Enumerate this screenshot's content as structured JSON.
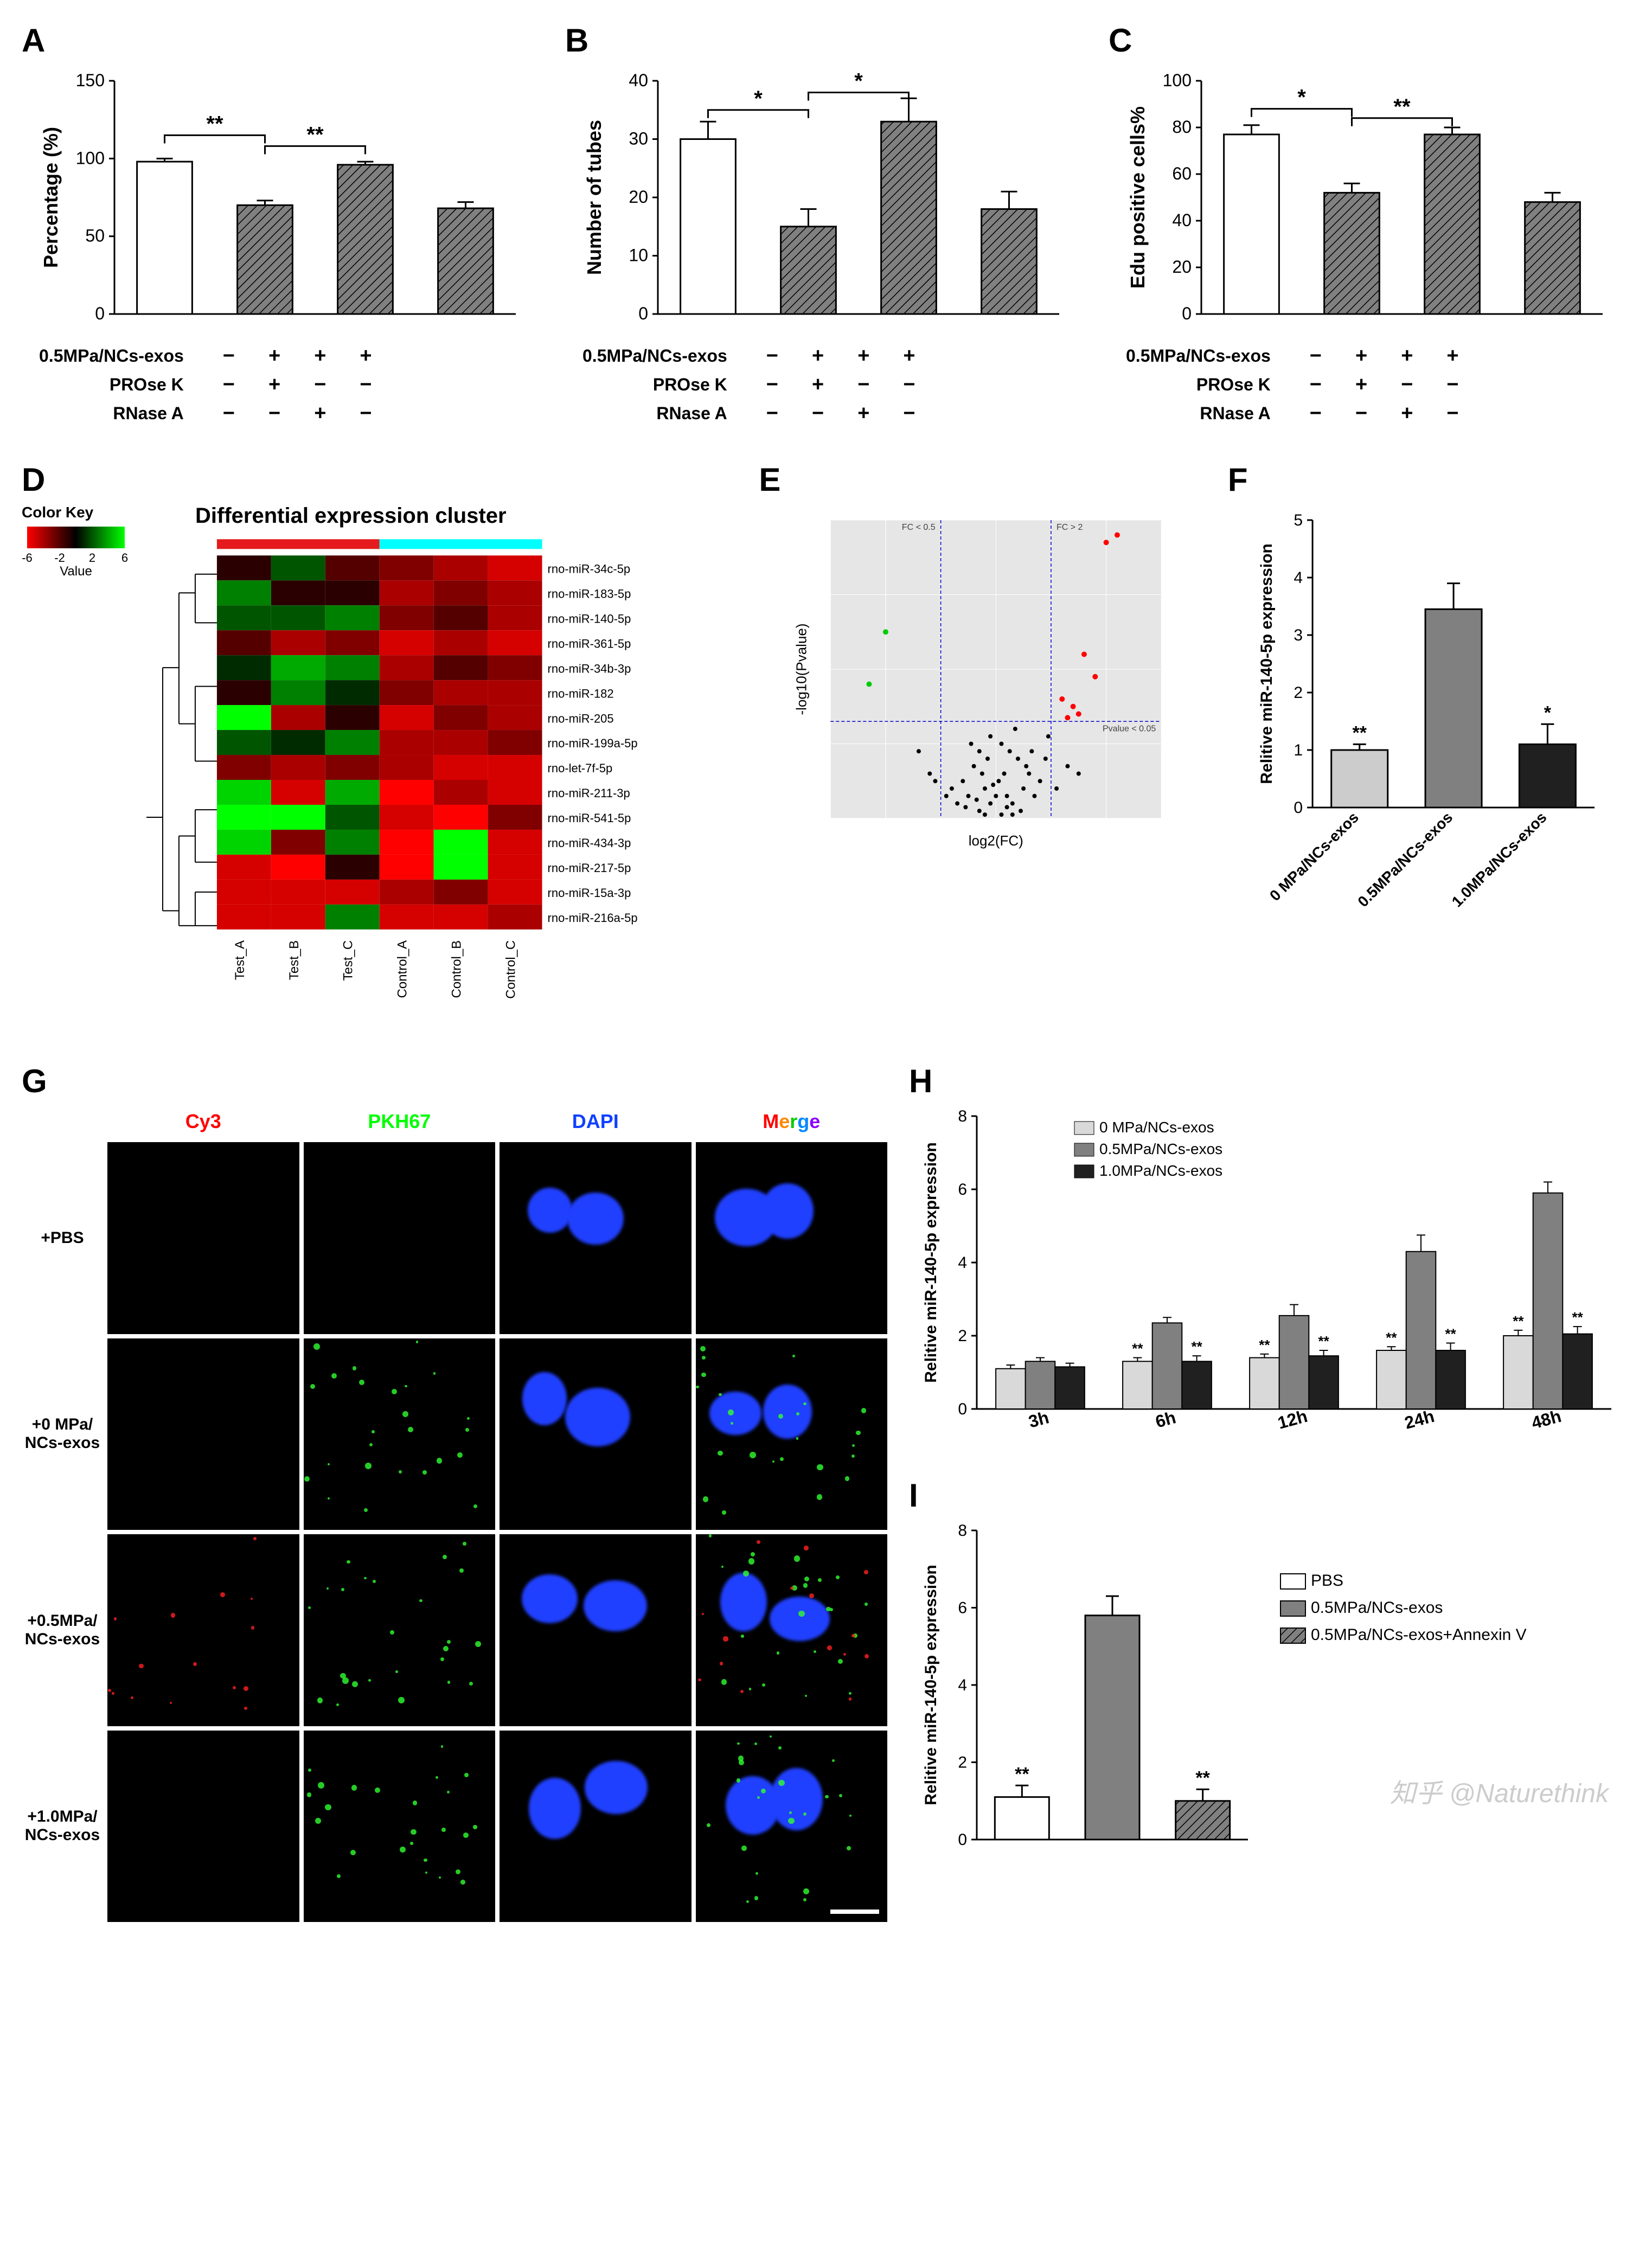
{
  "panelA": {
    "label": "A",
    "ylabel": "Percentage (%)",
    "ylim": [
      0,
      150
    ],
    "yticks": [
      0,
      50,
      100,
      150
    ],
    "bars": [
      {
        "value": 98,
        "err": 2,
        "fill": "#ffffff",
        "hatch": false
      },
      {
        "value": 70,
        "err": 3,
        "fill": "#808080",
        "hatch": true
      },
      {
        "value": 96,
        "err": 2,
        "fill": "#808080",
        "hatch": true
      },
      {
        "value": 68,
        "err": 4,
        "fill": "#808080",
        "hatch": true
      }
    ],
    "sig": [
      {
        "from": 0,
        "to": 1,
        "label": "**",
        "y": 115
      },
      {
        "from": 1,
        "to": 2,
        "label": "**",
        "y": 108
      }
    ],
    "treatments": [
      {
        "name": "0.5MPa/NCs-exos",
        "cells": [
          "−",
          "+",
          "+",
          "+"
        ]
      },
      {
        "name": "PROse K",
        "cells": [
          "−",
          "+",
          "−",
          "−"
        ]
      },
      {
        "name": "RNase A",
        "cells": [
          "−",
          "−",
          "+",
          "−"
        ]
      }
    ]
  },
  "panelB": {
    "label": "B",
    "ylabel": "Number of tubes",
    "ylim": [
      0,
      40
    ],
    "yticks": [
      0,
      10,
      20,
      30,
      40
    ],
    "bars": [
      {
        "value": 30,
        "err": 3,
        "fill": "#ffffff",
        "hatch": false
      },
      {
        "value": 15,
        "err": 3,
        "fill": "#808080",
        "hatch": true
      },
      {
        "value": 33,
        "err": 4,
        "fill": "#808080",
        "hatch": true
      },
      {
        "value": 18,
        "err": 3,
        "fill": "#808080",
        "hatch": true
      }
    ],
    "sig": [
      {
        "from": 0,
        "to": 1,
        "label": "*",
        "y": 35
      },
      {
        "from": 1,
        "to": 2,
        "label": "*",
        "y": 38
      }
    ],
    "treatments": [
      {
        "name": "0.5MPa/NCs-exos",
        "cells": [
          "−",
          "+",
          "+",
          "+"
        ]
      },
      {
        "name": "PROse K",
        "cells": [
          "−",
          "+",
          "−",
          "−"
        ]
      },
      {
        "name": "RNase A",
        "cells": [
          "−",
          "−",
          "+",
          "−"
        ]
      }
    ]
  },
  "panelC": {
    "label": "C",
    "ylabel": "Edu positive cells%",
    "ylim": [
      0,
      100
    ],
    "yticks": [
      0,
      20,
      40,
      60,
      80,
      100
    ],
    "bars": [
      {
        "value": 77,
        "err": 4,
        "fill": "#ffffff",
        "hatch": false
      },
      {
        "value": 52,
        "err": 4,
        "fill": "#808080",
        "hatch": true
      },
      {
        "value": 77,
        "err": 3,
        "fill": "#808080",
        "hatch": true
      },
      {
        "value": 48,
        "err": 4,
        "fill": "#808080",
        "hatch": true
      }
    ],
    "sig": [
      {
        "from": 0,
        "to": 1,
        "label": "*",
        "y": 88
      },
      {
        "from": 1,
        "to": 2,
        "label": "**",
        "y": 84
      }
    ],
    "treatments": [
      {
        "name": "0.5MPa/NCs-exos",
        "cells": [
          "−",
          "+",
          "+",
          "+"
        ]
      },
      {
        "name": "PROse K",
        "cells": [
          "−",
          "+",
          "−",
          "−"
        ]
      },
      {
        "name": "RNase A",
        "cells": [
          "−",
          "−",
          "+",
          "−"
        ]
      }
    ]
  },
  "panelD": {
    "label": "D",
    "title": "Differential expression cluster",
    "colorkey_label": "Color Key",
    "value_label": "Value",
    "color_range": [
      -6,
      -2,
      2,
      6
    ],
    "group_bar": [
      {
        "color": "#e41a1c",
        "span": 3
      },
      {
        "color": "#00ffff",
        "span": 3
      }
    ],
    "cols": [
      "Test_A",
      "Test_B",
      "Test_C",
      "Control_A",
      "Control_B",
      "Control_C"
    ],
    "rows": [
      "rno-miR-34c-5p",
      "rno-miR-183-5p",
      "rno-miR-140-5p",
      "rno-miR-361-5p",
      "rno-miR-34b-3p",
      "rno-miR-182",
      "rno-miR-205",
      "rno-miR-199a-5p",
      "rno-let-7f-5p",
      "rno-miR-211-3p",
      "rno-miR-541-5p",
      "rno-miR-434-3p",
      "rno-miR-217-5p",
      "rno-miR-15a-3p",
      "rno-miR-216a-5p"
    ],
    "cells": [
      [
        -1,
        2,
        -2,
        -3,
        -4,
        -5
      ],
      [
        3,
        -1,
        -1,
        -4,
        -3,
        -4
      ],
      [
        2,
        2,
        3,
        -3,
        -2,
        -4
      ],
      [
        -2,
        -4,
        -3,
        -5,
        -4,
        -5
      ],
      [
        1,
        4,
        3,
        -4,
        -2,
        -3
      ],
      [
        -1,
        3,
        1,
        -3,
        -4,
        -4
      ],
      [
        6,
        -4,
        -1,
        -5,
        -3,
        -4
      ],
      [
        2,
        1,
        3,
        -4,
        -4,
        -3
      ],
      [
        -3,
        -4,
        -3,
        -4,
        -5,
        -5
      ],
      [
        5,
        -5,
        4,
        -6,
        -4,
        -5
      ],
      [
        6,
        6,
        2,
        -5,
        -6,
        -3
      ],
      [
        5,
        -3,
        3,
        -6,
        6,
        -5
      ],
      [
        -5,
        -6,
        -1,
        -6,
        6,
        -5
      ],
      [
        -5,
        -5,
        -5,
        -4,
        -3,
        -5
      ],
      [
        -5,
        -5,
        3,
        -5,
        -5,
        -4
      ]
    ]
  },
  "panelE": {
    "label": "E",
    "xlabel": "log2(FC)",
    "ylabel": "-log10(Pvalue)",
    "fc_neg_label": "FC < 0.5",
    "fc_pos_label": "FC > 2",
    "pval_label": "Pvalue < 0.05",
    "xlim": [
      -3,
      3
    ],
    "ylim": [
      0,
      4
    ],
    "hline_y": 1.3,
    "vline_x": [
      -1,
      1
    ],
    "background": "#e6e6e6",
    "points_black": [
      [
        -0.1,
        0.2
      ],
      [
        0.2,
        0.3
      ],
      [
        -0.3,
        0.1
      ],
      [
        0.05,
        0.5
      ],
      [
        0.15,
        0.6
      ],
      [
        -0.2,
        0.4
      ],
      [
        0.3,
        0.2
      ],
      [
        -0.4,
        0.7
      ],
      [
        0.25,
        0.9
      ],
      [
        -0.1,
        1.1
      ],
      [
        0.4,
        0.8
      ],
      [
        -0.5,
        0.3
      ],
      [
        0.1,
        1.0
      ],
      [
        -0.6,
        0.5
      ],
      [
        0.5,
        0.4
      ],
      [
        -0.3,
        0.9
      ],
      [
        0.0,
        0.3
      ],
      [
        0.6,
        0.6
      ],
      [
        -0.7,
        0.2
      ],
      [
        0.35,
        1.2
      ],
      [
        -0.15,
        0.8
      ],
      [
        0.45,
        0.1
      ],
      [
        -0.8,
        0.4
      ],
      [
        0.55,
        0.7
      ],
      [
        -0.25,
        0.6
      ],
      [
        0.7,
        0.3
      ],
      [
        -0.45,
        1.0
      ],
      [
        0.2,
        0.15
      ],
      [
        -0.05,
        0.45
      ],
      [
        0.65,
        0.9
      ],
      [
        -0.9,
        0.3
      ],
      [
        0.8,
        0.5
      ],
      [
        -0.35,
        0.25
      ],
      [
        0.9,
        0.8
      ],
      [
        -1.2,
        0.6
      ],
      [
        1.1,
        0.4
      ],
      [
        -1.4,
        0.9
      ],
      [
        1.3,
        0.7
      ],
      [
        0.95,
        1.1
      ],
      [
        -1.1,
        0.5
      ],
      [
        1.5,
        0.6
      ],
      [
        -0.55,
        0.15
      ],
      [
        0.1,
        0.05
      ],
      [
        -0.2,
        0.05
      ],
      [
        0.3,
        0.05
      ]
    ],
    "points_red": [
      [
        1.2,
        1.6
      ],
      [
        1.4,
        1.5
      ],
      [
        1.6,
        2.2
      ],
      [
        1.8,
        1.9
      ],
      [
        2.0,
        3.7
      ],
      [
        2.2,
        3.8
      ],
      [
        1.5,
        1.4
      ],
      [
        1.3,
        1.35
      ]
    ],
    "points_green": [
      [
        -2.0,
        2.5
      ],
      [
        -2.3,
        1.8
      ]
    ]
  },
  "panelF": {
    "label": "F",
    "ylabel": "Relitive miR-140-5p expression",
    "ylim": [
      0,
      5
    ],
    "yticks": [
      0,
      1,
      2,
      3,
      4,
      5
    ],
    "bars": [
      {
        "label": "0 MPa/NCs-exos",
        "value": 1.0,
        "err": 0.1,
        "fill": "#cccccc",
        "sig": "**"
      },
      {
        "label": "0.5MPa/NCs-exos",
        "value": 3.45,
        "err": 0.45,
        "fill": "#808080",
        "sig": ""
      },
      {
        "label": "1.0MPa/NCs-exos",
        "value": 1.1,
        "err": 0.35,
        "fill": "#202020",
        "sig": "*"
      }
    ]
  },
  "panelG": {
    "label": "G",
    "col_headers": [
      {
        "text": "Cy3",
        "color": "#ff0000"
      },
      {
        "text": "PKH67",
        "color": "#00ff00"
      },
      {
        "text": "DAPI",
        "color": "#1040ff"
      },
      {
        "text": "Merge",
        "color_parts": [
          {
            "t": "M",
            "c": "#ff0000"
          },
          {
            "t": "e",
            "c": "#ff8800"
          },
          {
            "t": "r",
            "c": "#00cc00"
          },
          {
            "t": "g",
            "c": "#0088ff"
          },
          {
            "t": "e",
            "c": "#8800ff"
          }
        ]
      }
    ],
    "row_headers": [
      "+PBS",
      "+0 MPa/\nNCs-exos",
      "+0.5MPa/\nNCs-exos",
      "+1.0MPa/\nNCs-exos"
    ],
    "scalebar_color": "#ffffff"
  },
  "panelH": {
    "label": "H",
    "ylabel": "Relitive miR-140-5p expression",
    "ylim": [
      0,
      8
    ],
    "yticks": [
      0,
      2,
      4,
      6,
      8
    ],
    "xcats": [
      "3h",
      "6h",
      "12h",
      "24h",
      "48h"
    ],
    "series": [
      {
        "name": "0 MPa/NCs-exos",
        "fill": "#d9d9d9",
        "values": [
          1.1,
          1.3,
          1.4,
          1.6,
          2.0
        ],
        "err": [
          0.1,
          0.1,
          0.1,
          0.1,
          0.15
        ],
        "sig": [
          "",
          "**",
          "**",
          "**",
          "**"
        ]
      },
      {
        "name": "0.5MPa/NCs-exos",
        "fill": "#808080",
        "values": [
          1.3,
          2.35,
          2.55,
          4.3,
          5.9
        ],
        "err": [
          0.1,
          0.15,
          0.3,
          0.45,
          0.3
        ],
        "sig": [
          "",
          "",
          "",
          "",
          ""
        ]
      },
      {
        "name": "1.0MPa/NCs-exos",
        "fill": "#202020",
        "values": [
          1.15,
          1.3,
          1.45,
          1.6,
          2.05
        ],
        "err": [
          0.1,
          0.15,
          0.15,
          0.2,
          0.2
        ],
        "sig": [
          "",
          "**",
          "**",
          "**",
          "**"
        ]
      }
    ]
  },
  "panelI": {
    "label": "I",
    "ylabel": "Relitive miR-140-5p expression",
    "ylim": [
      0,
      8
    ],
    "yticks": [
      0,
      2,
      4,
      6,
      8
    ],
    "legend": [
      {
        "name": "PBS",
        "fill": "#ffffff",
        "hatch": false
      },
      {
        "name": "0.5MPa/NCs-exos",
        "fill": "#808080",
        "hatch": false
      },
      {
        "name": "0.5MPa/NCs-exos+Annexin V",
        "fill": "#808080",
        "hatch": true
      }
    ],
    "bars": [
      {
        "value": 1.1,
        "err": 0.3,
        "fill": "#ffffff",
        "hatch": false,
        "sig": "**"
      },
      {
        "value": 5.8,
        "err": 0.5,
        "fill": "#808080",
        "hatch": false,
        "sig": ""
      },
      {
        "value": 1.0,
        "err": 0.3,
        "fill": "#808080",
        "hatch": true,
        "sig": "**"
      }
    ]
  },
  "watermark": "知乎 @Naturethink"
}
